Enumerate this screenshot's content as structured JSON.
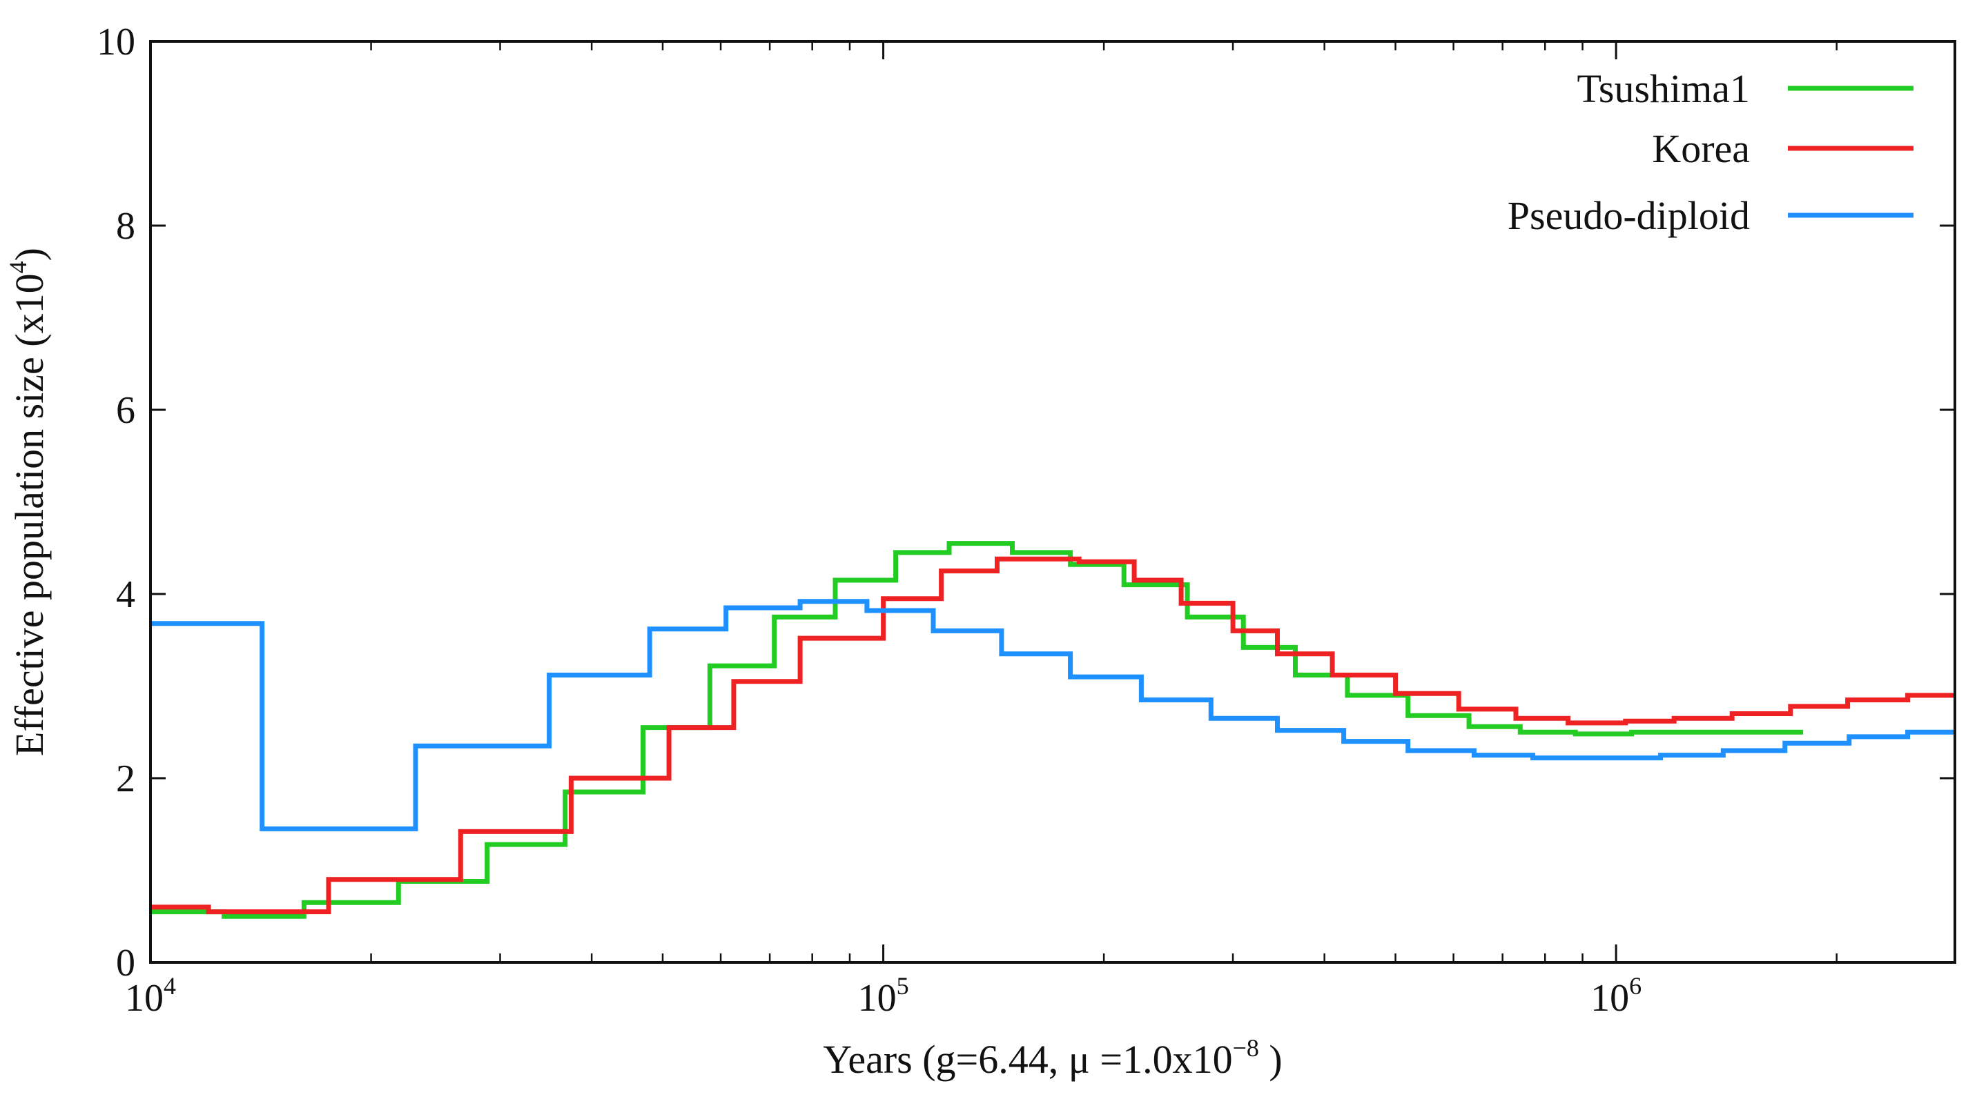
{
  "chart_data": {
    "type": "line",
    "step": true,
    "xscale": "log",
    "xlabel": "Years (g=6.44, μ =1.0x10",
    "xlabel_exp": "−8",
    "xlabel_close": " )",
    "ylabel": "Effective population size (x10",
    "ylabel_exp": "4",
    "ylabel_close": ")",
    "xlim": [
      10000,
      2900000
    ],
    "ylim": [
      0,
      10
    ],
    "yticks": [
      0,
      2,
      4,
      6,
      8,
      10
    ],
    "xticks": [
      {
        "value": 10000,
        "base": "10",
        "exp": "4"
      },
      {
        "value": 100000,
        "base": "10",
        "exp": "5"
      },
      {
        "value": 1000000,
        "base": "10",
        "exp": "6"
      }
    ],
    "legend_position": "top-right",
    "series": [
      {
        "name": "Tsushima1",
        "color": "#22cc22",
        "x": [
          10000,
          12600,
          16200,
          21800,
          28800,
          36800,
          47000,
          58000,
          71000,
          86000,
          104000,
          123000,
          150000,
          180000,
          213000,
          260000,
          310000,
          365000,
          430000,
          520000,
          630000,
          740000,
          880000,
          1050000,
          1250000,
          1500000,
          1800000
        ],
        "y": [
          0.55,
          0.5,
          0.65,
          0.88,
          1.28,
          1.85,
          2.55,
          3.22,
          3.75,
          4.15,
          4.45,
          4.55,
          4.45,
          4.32,
          4.1,
          3.75,
          3.42,
          3.12,
          2.9,
          2.68,
          2.56,
          2.5,
          2.48,
          2.5,
          2.5,
          2.5,
          2.5
        ]
      },
      {
        "name": "Korea",
        "color": "#ee2222",
        "x": [
          10000,
          12000,
          17500,
          26500,
          37500,
          51000,
          62500,
          77000,
          100000,
          120000,
          143000,
          185000,
          220000,
          255000,
          300000,
          345000,
          410000,
          500000,
          610000,
          730000,
          860000,
          1030000,
          1200000,
          1440000,
          1730000,
          2070000,
          2500000,
          2900000
        ],
        "y": [
          0.6,
          0.55,
          0.9,
          1.42,
          2.0,
          2.55,
          3.05,
          3.52,
          3.95,
          4.25,
          4.38,
          4.35,
          4.15,
          3.9,
          3.6,
          3.35,
          3.12,
          2.92,
          2.75,
          2.65,
          2.6,
          2.62,
          2.65,
          2.7,
          2.78,
          2.85,
          2.9,
          2.9
        ]
      },
      {
        "name": "Pseudo-diploid",
        "color": "#1e90ff",
        "x": [
          10000,
          14200,
          23000,
          35000,
          48000,
          61000,
          77000,
          95000,
          117000,
          145000,
          180000,
          225000,
          280000,
          345000,
          425000,
          520000,
          640000,
          770000,
          950000,
          1150000,
          1400000,
          1700000,
          2080000,
          2500000,
          2900000
        ],
        "y": [
          3.68,
          1.45,
          2.35,
          3.12,
          3.62,
          3.85,
          3.92,
          3.82,
          3.6,
          3.35,
          3.1,
          2.85,
          2.65,
          2.52,
          2.4,
          2.3,
          2.25,
          2.22,
          2.22,
          2.25,
          2.3,
          2.38,
          2.45,
          2.5,
          2.5
        ]
      }
    ]
  }
}
